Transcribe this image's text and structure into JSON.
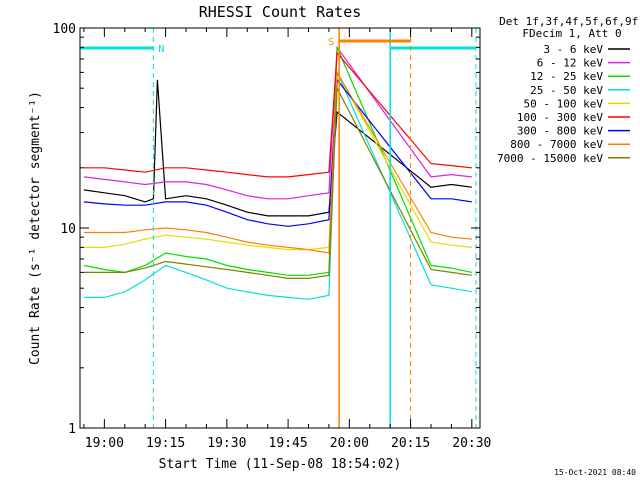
{
  "chart_data": {
    "type": "line",
    "title": "RHESSI Count Rates",
    "xlabel": "Start Time (11-Sep-08 18:54:02)",
    "ylabel": "Count Rate (s⁻¹ detector segment⁻¹)",
    "yscale": "log",
    "ylim": [
      1,
      100
    ],
    "xlim": [
      "18:54:02",
      "20:32:00"
    ],
    "x_ticks": [
      "19:00",
      "19:15",
      "19:30",
      "19:45",
      "20:00",
      "20:15",
      "20:30"
    ],
    "y_ticks": [
      "1",
      "10",
      "100"
    ],
    "grid": false,
    "legend_position": "right",
    "legend_header": [
      "Det 1f,3f,4f,5f,6f,9f,",
      "FDecim 1, Att 0"
    ],
    "timestamp": "15-Oct-2021 08:40",
    "series": [
      {
        "name": "3 - 6 keV",
        "color": "#000000",
        "x": [
          "18:55",
          "19:00",
          "19:05",
          "19:10",
          "19:12",
          "19:13",
          "19:15",
          "19:20",
          "19:25",
          "19:30",
          "19:35",
          "19:40",
          "19:45",
          "19:50",
          "19:55",
          "19:57",
          "20:20",
          "20:25",
          "20:30"
        ],
        "values": [
          15.5,
          15,
          14.5,
          13.5,
          14,
          55,
          14,
          14.5,
          14,
          13,
          12,
          11.5,
          11.5,
          11.5,
          12,
          38,
          16,
          16.5,
          16
        ]
      },
      {
        "name": "6 - 12 keV",
        "color": "#e020e0",
        "x": [
          "18:55",
          "19:00",
          "19:05",
          "19:10",
          "19:15",
          "19:20",
          "19:25",
          "19:30",
          "19:35",
          "19:40",
          "19:45",
          "19:50",
          "19:55",
          "19:57",
          "20:20",
          "20:25",
          "20:30"
        ],
        "values": [
          18,
          17.5,
          17,
          16.5,
          17,
          17,
          16.5,
          15.5,
          14.5,
          14,
          14,
          14.5,
          15,
          80,
          18,
          18.5,
          18
        ]
      },
      {
        "name": "12 - 25 keV",
        "color": "#00e000",
        "x": [
          "18:55",
          "19:00",
          "19:05",
          "19:10",
          "19:15",
          "19:20",
          "19:25",
          "19:30",
          "19:35",
          "19:40",
          "19:45",
          "19:50",
          "19:55",
          "19:57",
          "20:20",
          "20:25",
          "20:30"
        ],
        "values": [
          6.5,
          6.2,
          6,
          6.5,
          7.5,
          7.2,
          7,
          6.5,
          6.2,
          6,
          5.8,
          5.8,
          6,
          80,
          6.5,
          6.3,
          6
        ]
      },
      {
        "name": "25 - 50 keV",
        "color": "#00e0e0",
        "x": [
          "18:55",
          "19:00",
          "19:05",
          "19:10",
          "19:15",
          "19:20",
          "19:25",
          "19:30",
          "19:35",
          "19:40",
          "19:45",
          "19:50",
          "19:55",
          "19:57",
          "20:20",
          "20:25",
          "20:30"
        ],
        "values": [
          4.5,
          4.5,
          4.8,
          5.5,
          6.5,
          6,
          5.5,
          5,
          4.8,
          4.6,
          4.5,
          4.4,
          4.6,
          60,
          5.2,
          5,
          4.8
        ]
      },
      {
        "name": "50 - 100 keV",
        "color": "#e0e000",
        "x": [
          "18:55",
          "19:00",
          "19:05",
          "19:10",
          "19:15",
          "19:20",
          "19:25",
          "19:30",
          "19:35",
          "19:40",
          "19:45",
          "19:50",
          "19:55",
          "19:57",
          "20:20",
          "20:25",
          "20:30"
        ],
        "values": [
          8,
          8,
          8.3,
          8.8,
          9.2,
          9,
          8.8,
          8.5,
          8.2,
          8,
          7.8,
          7.8,
          8,
          60,
          8.5,
          8.2,
          8
        ]
      },
      {
        "name": "100 - 300 keV",
        "color": "#ff0000",
        "x": [
          "18:55",
          "19:00",
          "19:05",
          "19:10",
          "19:15",
          "19:20",
          "19:25",
          "19:30",
          "19:35",
          "19:40",
          "19:45",
          "19:50",
          "19:55",
          "19:57",
          "20:20",
          "20:25",
          "20:30"
        ],
        "values": [
          20,
          20,
          19.5,
          19,
          20,
          20,
          19.5,
          19,
          18.5,
          18,
          18,
          18.5,
          19,
          75,
          21,
          20.5,
          20
        ]
      },
      {
        "name": "300 - 800 keV",
        "color": "#0000ff",
        "x": [
          "18:55",
          "19:00",
          "19:05",
          "19:10",
          "19:15",
          "19:20",
          "19:25",
          "19:30",
          "19:35",
          "19:40",
          "19:45",
          "19:50",
          "19:55",
          "19:57",
          "20:20",
          "20:25",
          "20:30"
        ],
        "values": [
          13.5,
          13.2,
          13,
          13,
          13.5,
          13.5,
          13,
          12,
          11,
          10.5,
          10.2,
          10.5,
          11,
          55,
          14,
          14,
          13.5
        ]
      },
      {
        "name": "800 - 7000 keV",
        "color": "#ff8000",
        "x": [
          "18:55",
          "19:00",
          "19:05",
          "19:10",
          "19:15",
          "19:20",
          "19:25",
          "19:30",
          "19:35",
          "19:40",
          "19:45",
          "19:50",
          "19:55",
          "19:57",
          "20:20",
          "20:25",
          "20:30"
        ],
        "values": [
          9.5,
          9.5,
          9.5,
          9.8,
          10,
          9.8,
          9.5,
          9,
          8.5,
          8.2,
          8,
          7.8,
          7.5,
          60,
          9.5,
          9,
          8.8
        ]
      },
      {
        "name": "7000 - 15000 keV",
        "color": "#808000",
        "x": [
          "18:55",
          "19:00",
          "19:05",
          "19:10",
          "19:15",
          "19:20",
          "19:25",
          "19:30",
          "19:35",
          "19:40",
          "19:45",
          "19:50",
          "19:55",
          "19:57",
          "20:20",
          "20:25",
          "20:30"
        ],
        "values": [
          6,
          6,
          6,
          6.3,
          6.8,
          6.6,
          6.4,
          6.2,
          6,
          5.8,
          5.6,
          5.6,
          5.8,
          50,
          6.2,
          6,
          5.8
        ]
      }
    ],
    "annotations": [
      {
        "label": "N",
        "kind": "night",
        "color": "#00e0e0",
        "start": "18:54:02",
        "end": "19:12:00",
        "style": "dashed-end"
      },
      {
        "label": "",
        "kind": "night",
        "color": "#00e0e0",
        "start": "20:10:00",
        "end": "20:31:00",
        "style": "solid-start"
      },
      {
        "label": "S",
        "kind": "saa",
        "color": "#ff8000",
        "start": "19:57:30",
        "end": "20:15:00",
        "style": "solid-start"
      }
    ]
  }
}
